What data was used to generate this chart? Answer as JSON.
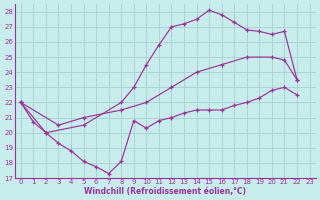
{
  "xlabel": "Windchill (Refroidissement éolien,°C)",
  "bg_color": "#c8ecec",
  "grid_color": "#a8d4d4",
  "line_color": "#993399",
  "xlim": [
    -0.5,
    23.5
  ],
  "ylim": [
    17,
    28.5
  ],
  "xticks": [
    0,
    1,
    2,
    3,
    4,
    5,
    6,
    7,
    8,
    9,
    10,
    11,
    12,
    13,
    14,
    15,
    16,
    17,
    18,
    19,
    20,
    21,
    22,
    23
  ],
  "yticks": [
    17,
    18,
    19,
    20,
    21,
    22,
    23,
    24,
    25,
    26,
    27,
    28
  ],
  "series_top": [
    [
      0,
      22.0
    ],
    [
      2,
      20.0
    ],
    [
      5,
      20.5
    ],
    [
      8,
      22.0
    ],
    [
      9,
      23.0
    ],
    [
      10,
      24.5
    ],
    [
      11,
      25.8
    ],
    [
      12,
      27.0
    ],
    [
      13,
      27.2
    ],
    [
      14,
      27.5
    ],
    [
      15,
      28.1
    ],
    [
      16,
      27.8
    ],
    [
      17,
      27.3
    ],
    [
      18,
      26.8
    ],
    [
      19,
      26.7
    ],
    [
      20,
      26.5
    ],
    [
      21,
      26.7
    ],
    [
      22,
      23.5
    ]
  ],
  "series_mid": [
    [
      0,
      22.0
    ],
    [
      3,
      20.5
    ],
    [
      5,
      21.0
    ],
    [
      8,
      21.5
    ],
    [
      10,
      22.0
    ],
    [
      12,
      23.0
    ],
    [
      14,
      24.0
    ],
    [
      16,
      24.5
    ],
    [
      18,
      25.0
    ],
    [
      20,
      25.0
    ],
    [
      21,
      24.8
    ],
    [
      22,
      23.5
    ]
  ],
  "series_bot": [
    [
      0,
      22.0
    ],
    [
      1,
      20.7
    ],
    [
      2,
      20.0
    ],
    [
      3,
      19.3
    ],
    [
      4,
      18.8
    ],
    [
      5,
      18.1
    ],
    [
      6,
      17.75
    ],
    [
      7,
      17.3
    ],
    [
      8,
      18.1
    ],
    [
      9,
      20.8
    ],
    [
      10,
      20.3
    ],
    [
      11,
      20.8
    ],
    [
      12,
      21.0
    ],
    [
      13,
      21.3
    ],
    [
      14,
      21.5
    ],
    [
      15,
      21.5
    ],
    [
      16,
      21.5
    ],
    [
      17,
      21.8
    ],
    [
      18,
      22.0
    ],
    [
      19,
      22.3
    ],
    [
      20,
      22.8
    ],
    [
      21,
      23.0
    ],
    [
      22,
      22.5
    ]
  ]
}
